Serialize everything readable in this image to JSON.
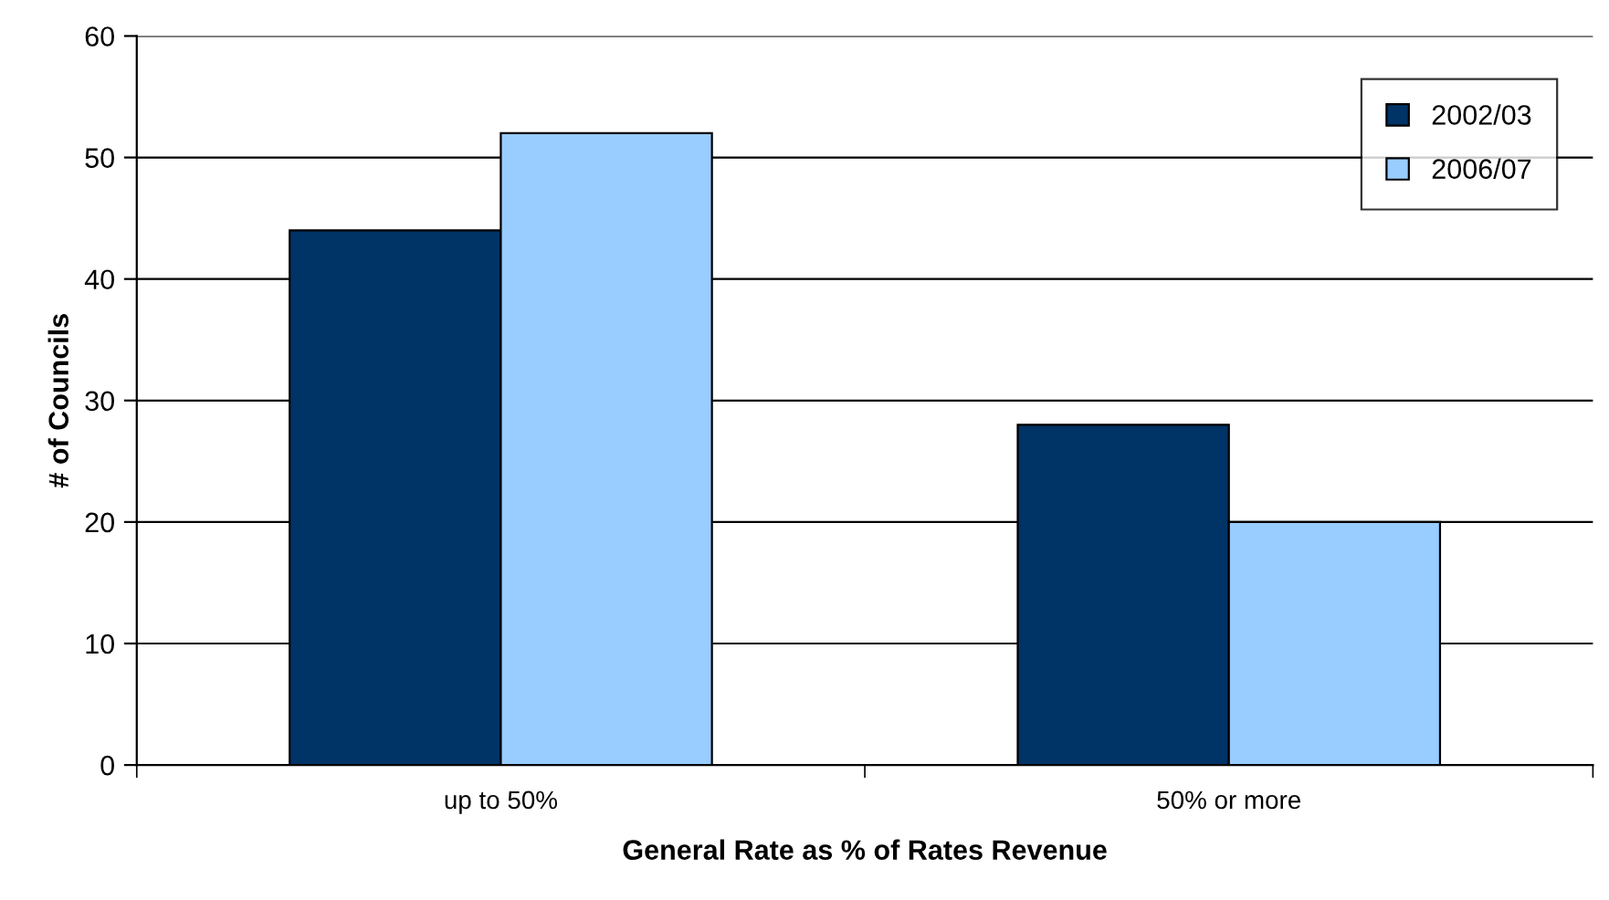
{
  "chart_data": {
    "type": "bar",
    "xlabel": "General Rate as % of Rates Revenue",
    "ylabel": "# of Councils",
    "categories": [
      "up to 50%",
      "50% or more"
    ],
    "series": [
      {
        "name": "2002/03",
        "color": "#003366",
        "values": [
          44,
          28
        ]
      },
      {
        "name": "2006/07",
        "color": "#99ccff",
        "values": [
          52,
          20
        ]
      }
    ],
    "ylim": [
      0,
      60
    ],
    "yticks": [
      0,
      10,
      20,
      30,
      40,
      50,
      60
    ],
    "grid": "y",
    "legend": "top right"
  }
}
